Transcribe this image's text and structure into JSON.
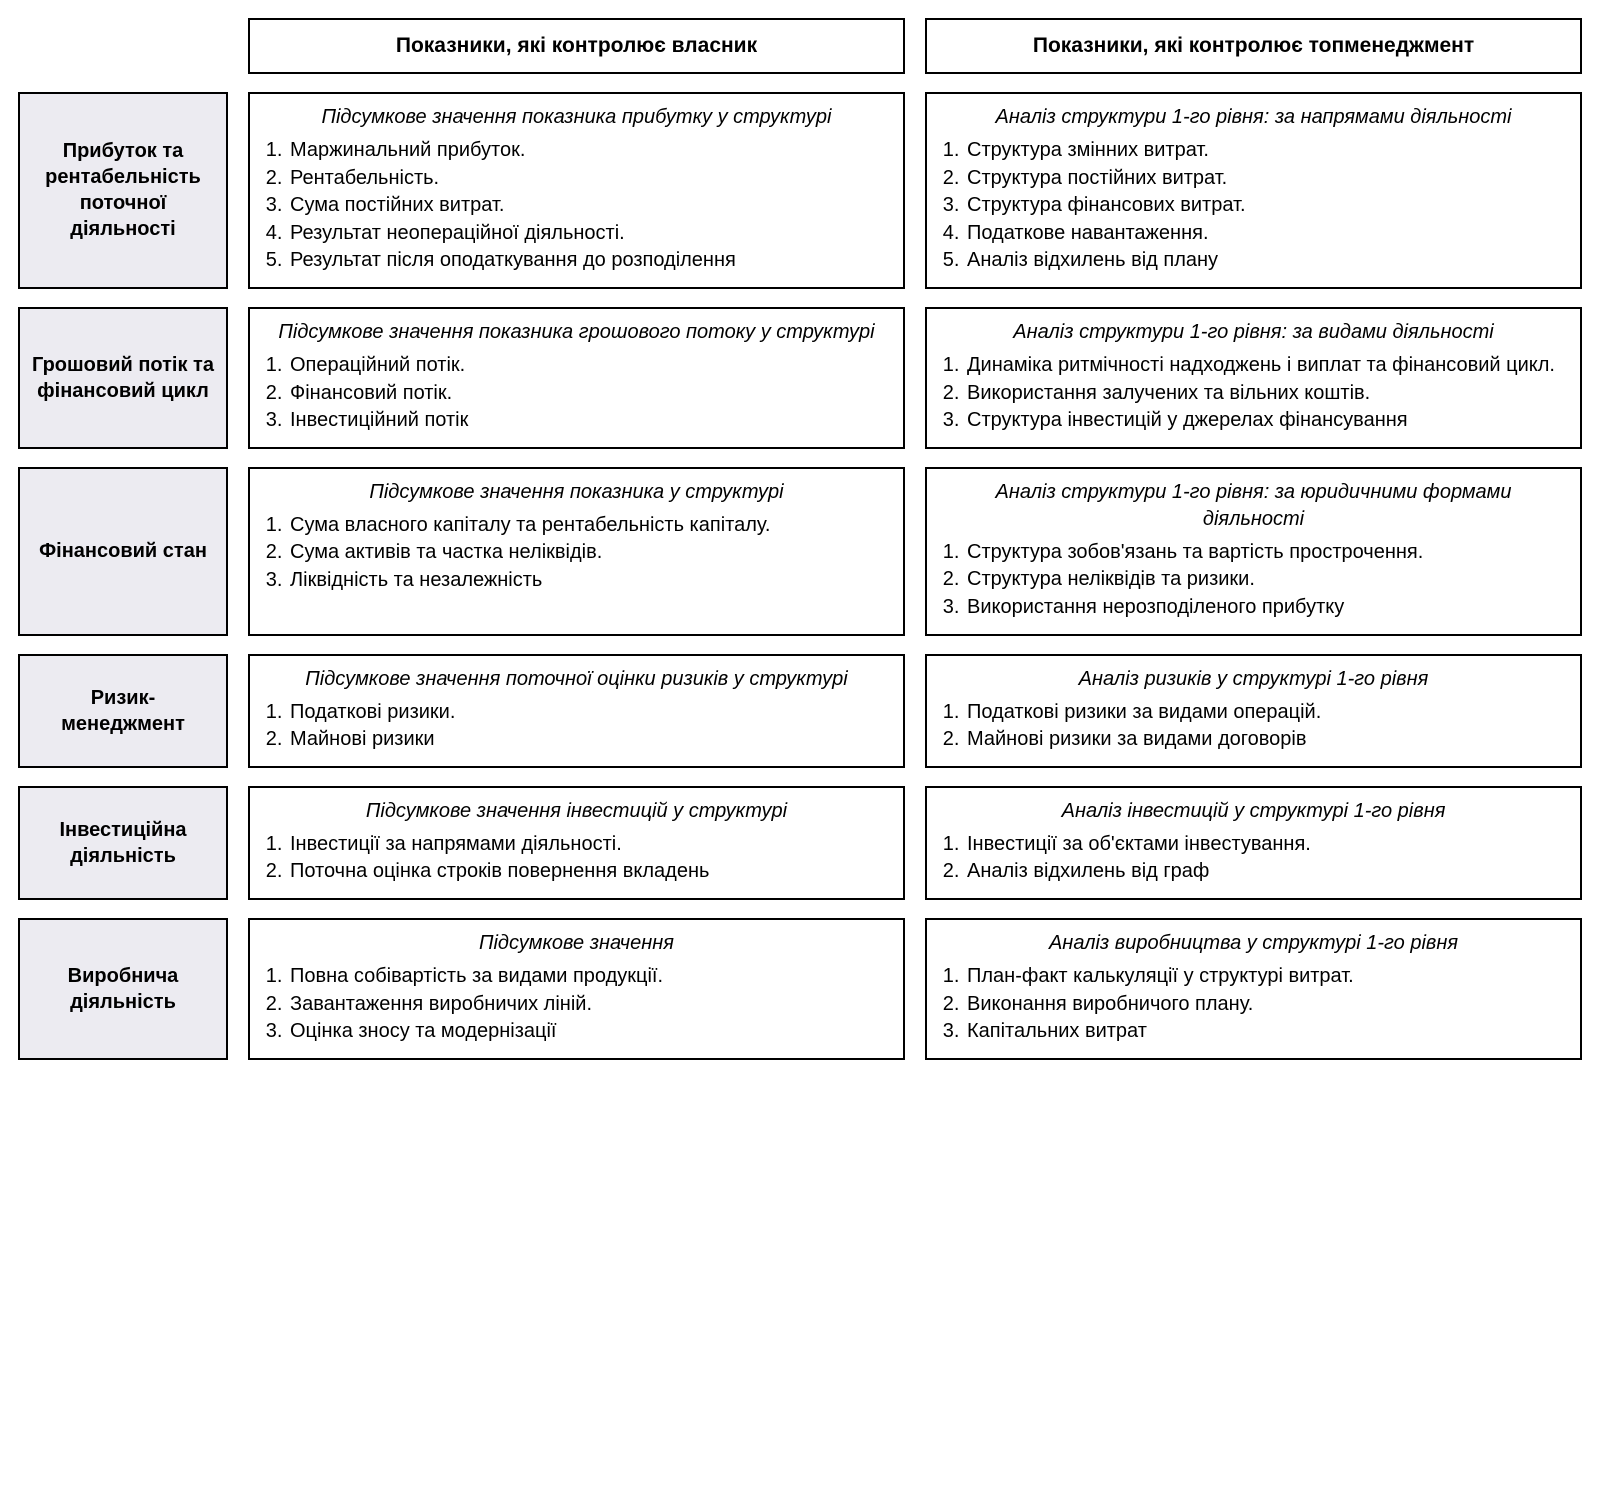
{
  "colors": {
    "border": "#000000",
    "rowLabelBg": "#ecebf1",
    "text": "#000000",
    "pageBg": "#ffffff"
  },
  "typography": {
    "headerFontSize": 21,
    "bodyFontSize": 20,
    "fontWeightBold": 700
  },
  "layout": {
    "cols": [
      "210px",
      "1fr",
      "1fr"
    ],
    "gapRow": 18,
    "gapCol": 20
  },
  "columns": {
    "owner": "Показники, які контролює власник",
    "topmgmt": "Показники, які контролює топменеджмент"
  },
  "rows": [
    {
      "key": "profit",
      "label": "Прибуток та рентабельність поточної діяльності",
      "owner": {
        "subtitle": "Підсумкове значення показника прибутку у структурі",
        "items": [
          "Маржинальний прибуток.",
          "Рентабельність.",
          "Сума постійних витрат.",
          "Результат неопераційної діяльності.",
          "Результат після оподаткування до розподілення"
        ]
      },
      "topmgmt": {
        "subtitle": "Аналіз структури 1-го рівня: за напрямами діяльності",
        "items": [
          "Структура змінних витрат.",
          "Структура постійних витрат.",
          "Структура фінансових витрат.",
          "Податкове навантаження.",
          "Аналіз відхилень від плану"
        ]
      }
    },
    {
      "key": "cashflow",
      "label": "Грошовий потік та фінансовий цикл",
      "owner": {
        "subtitle": "Підсумкове значення показника грошового потоку у структурі",
        "items": [
          "Операційний потік.",
          "Фінансовий потік.",
          "Інвестиційний потік"
        ]
      },
      "topmgmt": {
        "subtitle": "Аналіз структури 1-го рівня: за видами діяльності",
        "items": [
          "Динаміка ритмічності надходжень і виплат та фінансовий цикл.",
          "Використання залучених та вільних коштів.",
          "Структура інвестицій у джерелах фінансування"
        ]
      }
    },
    {
      "key": "finstate",
      "label": "Фінансовий стан",
      "owner": {
        "subtitle": "Підсумкове значення показника у структурі",
        "items": [
          "Сума власного капіталу та рентабельність капіталу.",
          "Сума активів та частка неліквідів.",
          "Ліквідність та незалежність"
        ]
      },
      "topmgmt": {
        "subtitle": "Аналіз структури 1-го рівня: за юридичними формами діяльності",
        "items": [
          "Структура зобов'язань та вартість прострочення.",
          "Структура неліквідів та ризики.",
          "Використання нерозподіленого прибутку"
        ]
      }
    },
    {
      "key": "risk",
      "label": "Ризик-менеджмент",
      "owner": {
        "subtitle": "Підсумкове значення поточної оцінки ризиків у структурі",
        "items": [
          "Податкові ризики.",
          "Майнові ризики"
        ]
      },
      "topmgmt": {
        "subtitle": "Аналіз ризиків у структурі 1-го рівня",
        "items": [
          "Податкові ризики за видами операцій.",
          "Майнові ризики за видами договорів"
        ]
      }
    },
    {
      "key": "invest",
      "label": "Інвестиційна діяльність",
      "owner": {
        "subtitle": "Підсумкове значення інвестицій у структурі",
        "items": [
          "Інвестиції за напрямами діяльності.",
          "Поточна оцінка строків повернення вкладень"
        ]
      },
      "topmgmt": {
        "subtitle": "Аналіз інвестицій у структурі 1-го рівня",
        "items": [
          "Інвестиції за об'єктами інвестування.",
          "Аналіз відхилень від граф"
        ]
      }
    },
    {
      "key": "prod",
      "label": "Виробнича діяльність",
      "owner": {
        "subtitle": "Підсумкове значення",
        "items": [
          "Повна собівартість за видами продукції.",
          "Завантаження виробничих ліній.",
          "Оцінка зносу та модернізації"
        ]
      },
      "topmgmt": {
        "subtitle": "Аналіз виробництва у структурі 1-го рівня",
        "items": [
          "План-факт калькуляції у структурі витрат.",
          "Виконання виробничого плану.",
          "Капітальних витрат"
        ]
      }
    }
  ]
}
